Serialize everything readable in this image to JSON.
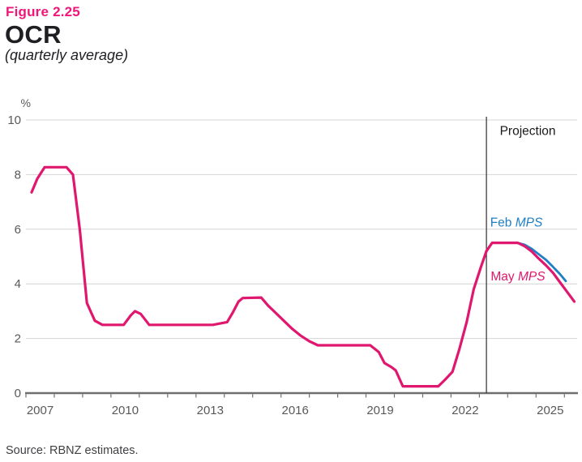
{
  "figure": {
    "label": "Figure 2.25",
    "title": "OCR",
    "subtitle": "(quarterly average)"
  },
  "source_note": "Source: RBNZ estimates.",
  "colors": {
    "figure_label": "#ef1779",
    "title_text": "#1f1f23",
    "axis_text": "#58595b",
    "axis_line": "#6e6f71",
    "gridline": "#d4d4d4",
    "projection_line": "#2e2e30",
    "pink": "#e0176e",
    "blue": "#1f7fc4",
    "annotation_text": "#1a1a1c",
    "source_text": "#414144"
  },
  "chart_data": {
    "type": "line",
    "title": "OCR",
    "subtitle": "(quarterly average)",
    "unit_label": "%",
    "ylim": [
      0,
      10
    ],
    "yticks": [
      0,
      2,
      4,
      6,
      8,
      10
    ],
    "xlim": [
      2007,
      2026.45
    ],
    "x_minor_tick_start": 2007,
    "x_minor_tick_end": 2026,
    "xtick_labels": [
      2007,
      2010,
      2013,
      2016,
      2019,
      2022,
      2025
    ],
    "grid": "horizontal",
    "projection_divider_x": 2023.25,
    "annotations": {
      "projection": {
        "text": "Projection",
        "x": 2023.72,
        "y": 9.45
      },
      "feb_label": {
        "prefix": "Feb ",
        "italic": "MPS",
        "x": 2023.38,
        "y": 6.1
      },
      "may_label": {
        "prefix": "May ",
        "italic": "MPS",
        "x": 2023.4,
        "y": 4.12
      }
    },
    "series": [
      {
        "id": "feb-mps",
        "name": "Feb MPS projection",
        "color_key": "blue",
        "width": 2.8,
        "points": [
          [
            2023.25,
            5.2
          ],
          [
            2023.45,
            5.5
          ],
          [
            2024.35,
            5.5
          ],
          [
            2024.6,
            5.43
          ],
          [
            2024.85,
            5.28
          ],
          [
            2025.1,
            5.08
          ],
          [
            2025.35,
            4.88
          ],
          [
            2025.6,
            4.62
          ],
          [
            2025.85,
            4.35
          ],
          [
            2026.05,
            4.1
          ]
        ]
      },
      {
        "id": "ocr-history",
        "name": "OCR actual (quarterly average)",
        "color_key": "pink",
        "width": 3.2,
        "points": [
          [
            2007.2,
            7.35
          ],
          [
            2007.4,
            7.85
          ],
          [
            2007.66,
            8.27
          ],
          [
            2008.43,
            8.27
          ],
          [
            2008.66,
            8.0
          ],
          [
            2008.9,
            6.0
          ],
          [
            2009.15,
            3.3
          ],
          [
            2009.43,
            2.65
          ],
          [
            2009.7,
            2.5
          ],
          [
            2010.45,
            2.5
          ],
          [
            2010.7,
            2.85
          ],
          [
            2010.85,
            3.0
          ],
          [
            2011.05,
            2.9
          ],
          [
            2011.35,
            2.5
          ],
          [
            2013.6,
            2.5
          ],
          [
            2013.85,
            2.55
          ],
          [
            2014.1,
            2.6
          ],
          [
            2014.3,
            2.95
          ],
          [
            2014.5,
            3.35
          ],
          [
            2014.65,
            3.48
          ],
          [
            2015.3,
            3.5
          ],
          [
            2015.55,
            3.2
          ],
          [
            2015.8,
            2.95
          ],
          [
            2016.1,
            2.65
          ],
          [
            2016.4,
            2.35
          ],
          [
            2016.7,
            2.1
          ],
          [
            2017.0,
            1.9
          ],
          [
            2017.3,
            1.75
          ],
          [
            2019.15,
            1.75
          ],
          [
            2019.45,
            1.5
          ],
          [
            2019.65,
            1.1
          ],
          [
            2019.9,
            0.95
          ],
          [
            2020.05,
            0.83
          ],
          [
            2020.3,
            0.25
          ],
          [
            2021.55,
            0.25
          ],
          [
            2021.8,
            0.5
          ],
          [
            2022.05,
            0.78
          ],
          [
            2022.3,
            1.63
          ],
          [
            2022.55,
            2.6
          ],
          [
            2022.8,
            3.8
          ],
          [
            2023.05,
            4.6
          ],
          [
            2023.25,
            5.2
          ]
        ]
      },
      {
        "id": "may-mps",
        "name": "May MPS projection",
        "color_key": "pink",
        "width": 3.2,
        "points": [
          [
            2023.25,
            5.2
          ],
          [
            2023.45,
            5.5
          ],
          [
            2024.35,
            5.5
          ],
          [
            2024.6,
            5.38
          ],
          [
            2024.85,
            5.18
          ],
          [
            2025.1,
            4.92
          ],
          [
            2025.35,
            4.68
          ],
          [
            2025.6,
            4.4
          ],
          [
            2025.85,
            4.05
          ],
          [
            2026.1,
            3.7
          ],
          [
            2026.35,
            3.35
          ]
        ]
      }
    ]
  }
}
